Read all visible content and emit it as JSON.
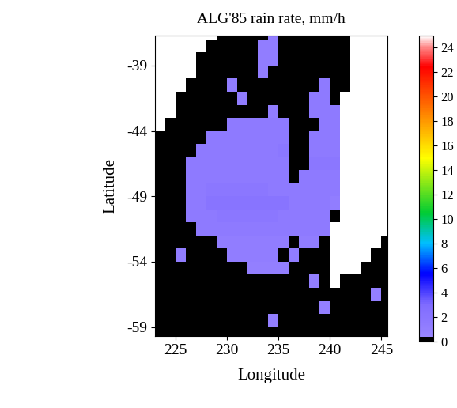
{
  "chart_data": {
    "type": "heatmap",
    "title": "ALG'85 rain rate, mm/h",
    "xlabel": "Longitude",
    "ylabel": "Latitude",
    "x_edges": [
      223,
      224,
      225,
      226,
      227,
      228,
      229,
      230,
      231,
      232,
      233,
      234,
      235,
      236,
      237,
      238,
      239,
      240,
      241,
      242,
      243,
      244,
      245,
      246
    ],
    "y_edges": [
      -36,
      -37,
      -38,
      -39,
      -40,
      -41,
      -42,
      -43,
      -44,
      -45,
      -46,
      -47,
      -48,
      -49,
      -50,
      -51,
      -52,
      -53,
      -54,
      -55,
      -56,
      -57,
      -58,
      -59,
      -60
    ],
    "cells": [
      [
        null,
        null,
        null,
        null,
        null,
        null,
        0,
        0,
        0,
        0,
        0,
        1.2,
        0,
        0,
        0,
        0,
        0,
        0,
        0,
        null,
        null,
        null,
        null
      ],
      [
        null,
        null,
        null,
        null,
        null,
        0,
        0,
        0,
        0,
        0,
        1.2,
        1.2,
        0,
        0,
        0,
        0,
        0,
        0,
        0,
        null,
        null,
        null,
        null
      ],
      [
        null,
        null,
        null,
        null,
        0,
        0,
        0,
        0,
        0,
        0,
        1.2,
        1.2,
        0,
        0,
        0,
        0,
        0,
        0,
        0,
        null,
        null,
        null,
        null
      ],
      [
        null,
        null,
        null,
        null,
        0,
        0,
        0,
        0,
        0,
        0,
        1.2,
        0,
        0,
        0,
        0,
        0,
        0,
        0,
        0,
        null,
        null,
        null,
        null
      ],
      [
        null,
        null,
        null,
        0,
        0,
        0,
        0,
        1.2,
        0,
        0,
        0,
        0,
        0,
        0,
        0,
        0,
        1.5,
        0,
        0,
        null,
        null,
        null,
        null
      ],
      [
        null,
        null,
        0,
        0,
        0,
        0,
        0,
        0,
        1.2,
        0,
        0,
        0,
        0,
        0,
        0,
        1.5,
        1.5,
        0,
        null,
        null,
        null,
        null,
        null
      ],
      [
        null,
        null,
        0,
        0,
        0,
        0,
        0,
        0,
        0,
        0,
        0,
        1.2,
        0,
        0,
        0,
        1.5,
        1.5,
        1.5,
        null,
        null,
        null,
        null,
        null
      ],
      [
        null,
        0,
        0,
        0,
        0,
        0,
        0,
        1.5,
        1.5,
        1.5,
        1.5,
        1.5,
        1.5,
        0,
        0,
        0,
        1.5,
        1.5,
        null,
        null,
        null,
        null,
        null
      ],
      [
        0,
        0,
        0,
        0,
        0,
        1.5,
        1.5,
        1.5,
        1.5,
        1.5,
        1.5,
        1.5,
        1.5,
        0,
        0,
        1.5,
        1.5,
        1.5,
        null,
        null,
        null,
        null,
        null
      ],
      [
        0,
        0,
        0,
        0,
        1.5,
        1.5,
        1.5,
        1.5,
        1.5,
        1.5,
        1.5,
        1.5,
        1.8,
        0,
        0,
        1.5,
        1.5,
        1.5,
        null,
        null,
        null,
        null,
        null
      ],
      [
        0,
        0,
        0,
        1.5,
        1.5,
        1.5,
        1.5,
        1.5,
        1.5,
        1.5,
        1.5,
        1.5,
        1.5,
        0,
        0,
        1.8,
        1.8,
        1.8,
        null,
        null,
        null,
        null,
        null
      ],
      [
        0,
        0,
        0,
        1.5,
        1.5,
        1.5,
        1.5,
        1.5,
        1.5,
        1.5,
        1.5,
        1.5,
        1.5,
        0,
        1.5,
        1.5,
        1.5,
        1.5,
        null,
        null,
        null,
        null,
        null
      ],
      [
        0,
        0,
        0,
        1.5,
        1.5,
        1.8,
        1.8,
        1.8,
        1.8,
        1.8,
        1.8,
        1.5,
        1.5,
        1.5,
        1.5,
        1.5,
        1.5,
        1.5,
        null,
        null,
        null,
        null,
        null
      ],
      [
        0,
        0,
        0,
        1.5,
        1.5,
        2.2,
        2.2,
        2.2,
        2.2,
        2.2,
        2.2,
        2.2,
        2.2,
        1.5,
        1.5,
        1.5,
        1.5,
        1.2,
        null,
        null,
        null,
        null,
        null
      ],
      [
        0,
        0,
        0,
        1.5,
        1.5,
        1.5,
        1.8,
        1.8,
        1.8,
        1.8,
        1.8,
        1.8,
        1.5,
        1.5,
        1.5,
        1.5,
        1.5,
        0,
        null,
        null,
        null,
        null,
        null
      ],
      [
        0,
        0,
        0,
        0,
        1.5,
        1.5,
        1.5,
        1.5,
        1.5,
        1.5,
        1.5,
        1.5,
        1.5,
        1.5,
        1.5,
        1.5,
        1.5,
        null,
        null,
        null,
        null,
        null,
        null
      ],
      [
        0,
        0,
        0,
        0,
        0,
        0,
        1.2,
        1.2,
        1.2,
        1.2,
        1.2,
        1.2,
        1.2,
        0,
        1.2,
        1.2,
        0,
        null,
        null,
        null,
        null,
        null,
        0
      ],
      [
        0,
        0,
        1.2,
        0,
        0,
        0,
        0,
        1.2,
        1.2,
        1.2,
        1.2,
        1.2,
        0,
        1.2,
        0,
        0,
        0,
        null,
        null,
        null,
        null,
        0,
        0
      ],
      [
        0,
        0,
        0,
        0,
        0,
        0,
        0,
        0,
        0,
        1.0,
        1.0,
        1.0,
        1.0,
        0,
        0,
        0,
        0,
        null,
        null,
        null,
        0,
        0,
        0
      ],
      [
        0,
        0,
        0,
        0,
        0,
        0,
        0,
        0,
        0,
        0,
        0,
        0,
        0,
        0,
        0,
        1.0,
        0,
        null,
        0,
        0,
        0,
        0,
        0
      ],
      [
        0,
        0,
        0,
        0,
        0,
        0,
        0,
        0,
        0,
        0,
        0,
        0,
        0,
        0,
        0,
        0,
        0,
        0,
        0,
        0,
        0,
        1.0,
        0
      ],
      [
        0,
        0,
        0,
        0,
        0,
        0,
        0,
        0,
        0,
        0,
        0,
        0,
        0,
        0,
        0,
        0,
        1.0,
        0,
        0,
        0,
        0,
        0,
        0
      ],
      [
        0,
        0,
        0,
        0,
        0,
        0,
        0,
        0,
        0,
        0,
        0,
        1.0,
        0,
        0,
        0,
        0,
        0,
        0,
        0,
        0,
        0,
        0,
        0
      ],
      [
        0,
        0,
        0,
        0,
        0,
        0,
        0,
        0,
        0,
        0,
        0,
        0,
        0,
        0,
        0,
        0,
        0,
        0,
        0,
        0,
        0,
        0,
        0
      ]
    ],
    "xlim": [
      223,
      245.6
    ],
    "ylim": [
      -59.7,
      -36.7
    ],
    "xticks": [
      225,
      230,
      235,
      240,
      245
    ],
    "yticks": [
      -59,
      -54,
      -49,
      -44,
      -39
    ],
    "colorbar": {
      "range": [
        0,
        25
      ],
      "ticks": [
        0,
        2,
        4,
        6,
        8,
        10,
        12,
        14,
        16,
        18,
        20,
        22,
        24
      ]
    }
  }
}
